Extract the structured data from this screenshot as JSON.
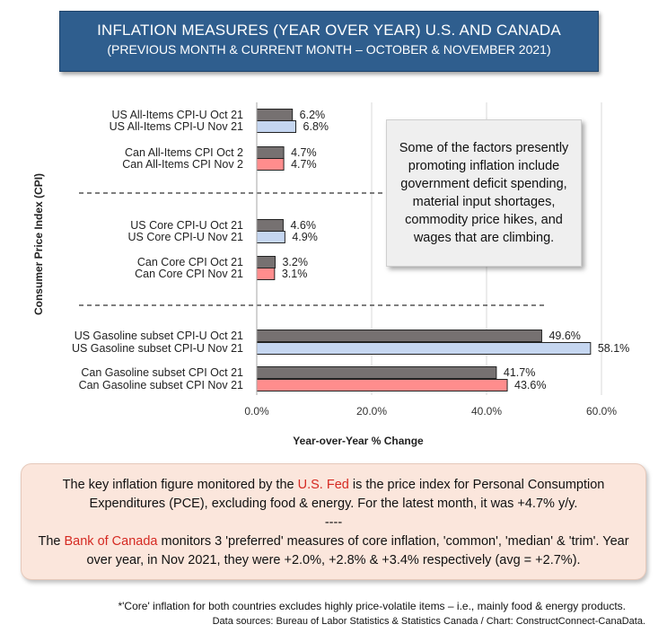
{
  "header": {
    "title": "INFLATION MEASURES (YEAR OVER YEAR) U.S. AND CANADA",
    "subtitle": "(PREVIOUS MONTH & CURRENT MONTH – OCTOBER & NOVEMBER 2021)"
  },
  "colors": {
    "prev_month": "#767171",
    "us_current": "#c5d6f0",
    "can_current": "#ff8d8d",
    "title_bg": "#2f5e8e"
  },
  "chart_data": {
    "type": "bar",
    "orientation": "horizontal",
    "xlabel": "Year-over-Year % Change",
    "ylabel": "Consumer Price Index (CPI)",
    "xlim": [
      0,
      60
    ],
    "xticks": [
      "0.0%",
      "20.0%",
      "40.0%",
      "60.0%"
    ],
    "grid": true,
    "value_format": "percent_1dp",
    "bars": [
      {
        "label": "US All-Items CPI-U Oct 21",
        "value": 6.2,
        "value_label": "6.2%",
        "color_key": "prev_month"
      },
      {
        "label": "US All-Items CPI-U Nov 21",
        "value": 6.8,
        "value_label": "6.8%",
        "color_key": "us_current"
      },
      {
        "label": "Can All-Items CPI Oct 2",
        "value": 4.7,
        "value_label": "4.7%",
        "color_key": "prev_month"
      },
      {
        "label": "Can All-Items CPI Nov 2",
        "value": 4.7,
        "value_label": "4.7%",
        "color_key": "can_current"
      },
      {
        "label": "US Core CPI-U Oct 21",
        "value": 4.6,
        "value_label": "4.6%",
        "color_key": "prev_month"
      },
      {
        "label": "US Core CPI-U Nov 21",
        "value": 4.9,
        "value_label": "4.9%",
        "color_key": "us_current"
      },
      {
        "label": "Can Core CPI Oct 21",
        "value": 3.2,
        "value_label": "3.2%",
        "color_key": "prev_month"
      },
      {
        "label": "Can Core CPI Nov 21",
        "value": 3.1,
        "value_label": "3.1%",
        "color_key": "can_current"
      },
      {
        "label": "US Gasoline subset CPI-U Oct 21",
        "value": 49.6,
        "value_label": "49.6%",
        "color_key": "prev_month"
      },
      {
        "label": "US Gasoline subset CPI-U Nov 21",
        "value": 58.1,
        "value_label": "58.1%",
        "color_key": "us_current"
      },
      {
        "label": "Can Gasoline subset CPI Oct 21",
        "value": 41.7,
        "value_label": "41.7%",
        "color_key": "prev_month"
      },
      {
        "label": "Can Gasoline subset CPI Nov 21",
        "value": 43.6,
        "value_label": "43.6%",
        "color_key": "can_current"
      }
    ]
  },
  "factors_box": {
    "text": "Some of the factors presently promoting inflation include government deficit spending, material input shortages, commodity price hikes, and wages that are climbing."
  },
  "note": {
    "p1_before": "The key inflation figure monitored by the ",
    "p1_highlight": "U.S. Fed",
    "p1_after": " is the price index for Personal Consumption Expenditures (PCE), excluding food & energy. For the latest month, it was +4.7% y/y.",
    "separator": "----",
    "p2_before": "The ",
    "p2_highlight": "Bank of Canada",
    "p2_after": " monitors 3 'preferred' measures of core inflation, 'common', 'median' & 'trim'. Year over year, in Nov 2021, they were +2.0%, +2.8% & +3.4% respectively (avg = +2.7%)."
  },
  "footnote": "*'Core' inflation for both countries excludes highly price-volatile items – i.e., mainly food & energy products.",
  "data_sources": "Data sources: Bureau of Labor Statistics & Statistics Canada / Chart: ConstructConnect-CanaData."
}
